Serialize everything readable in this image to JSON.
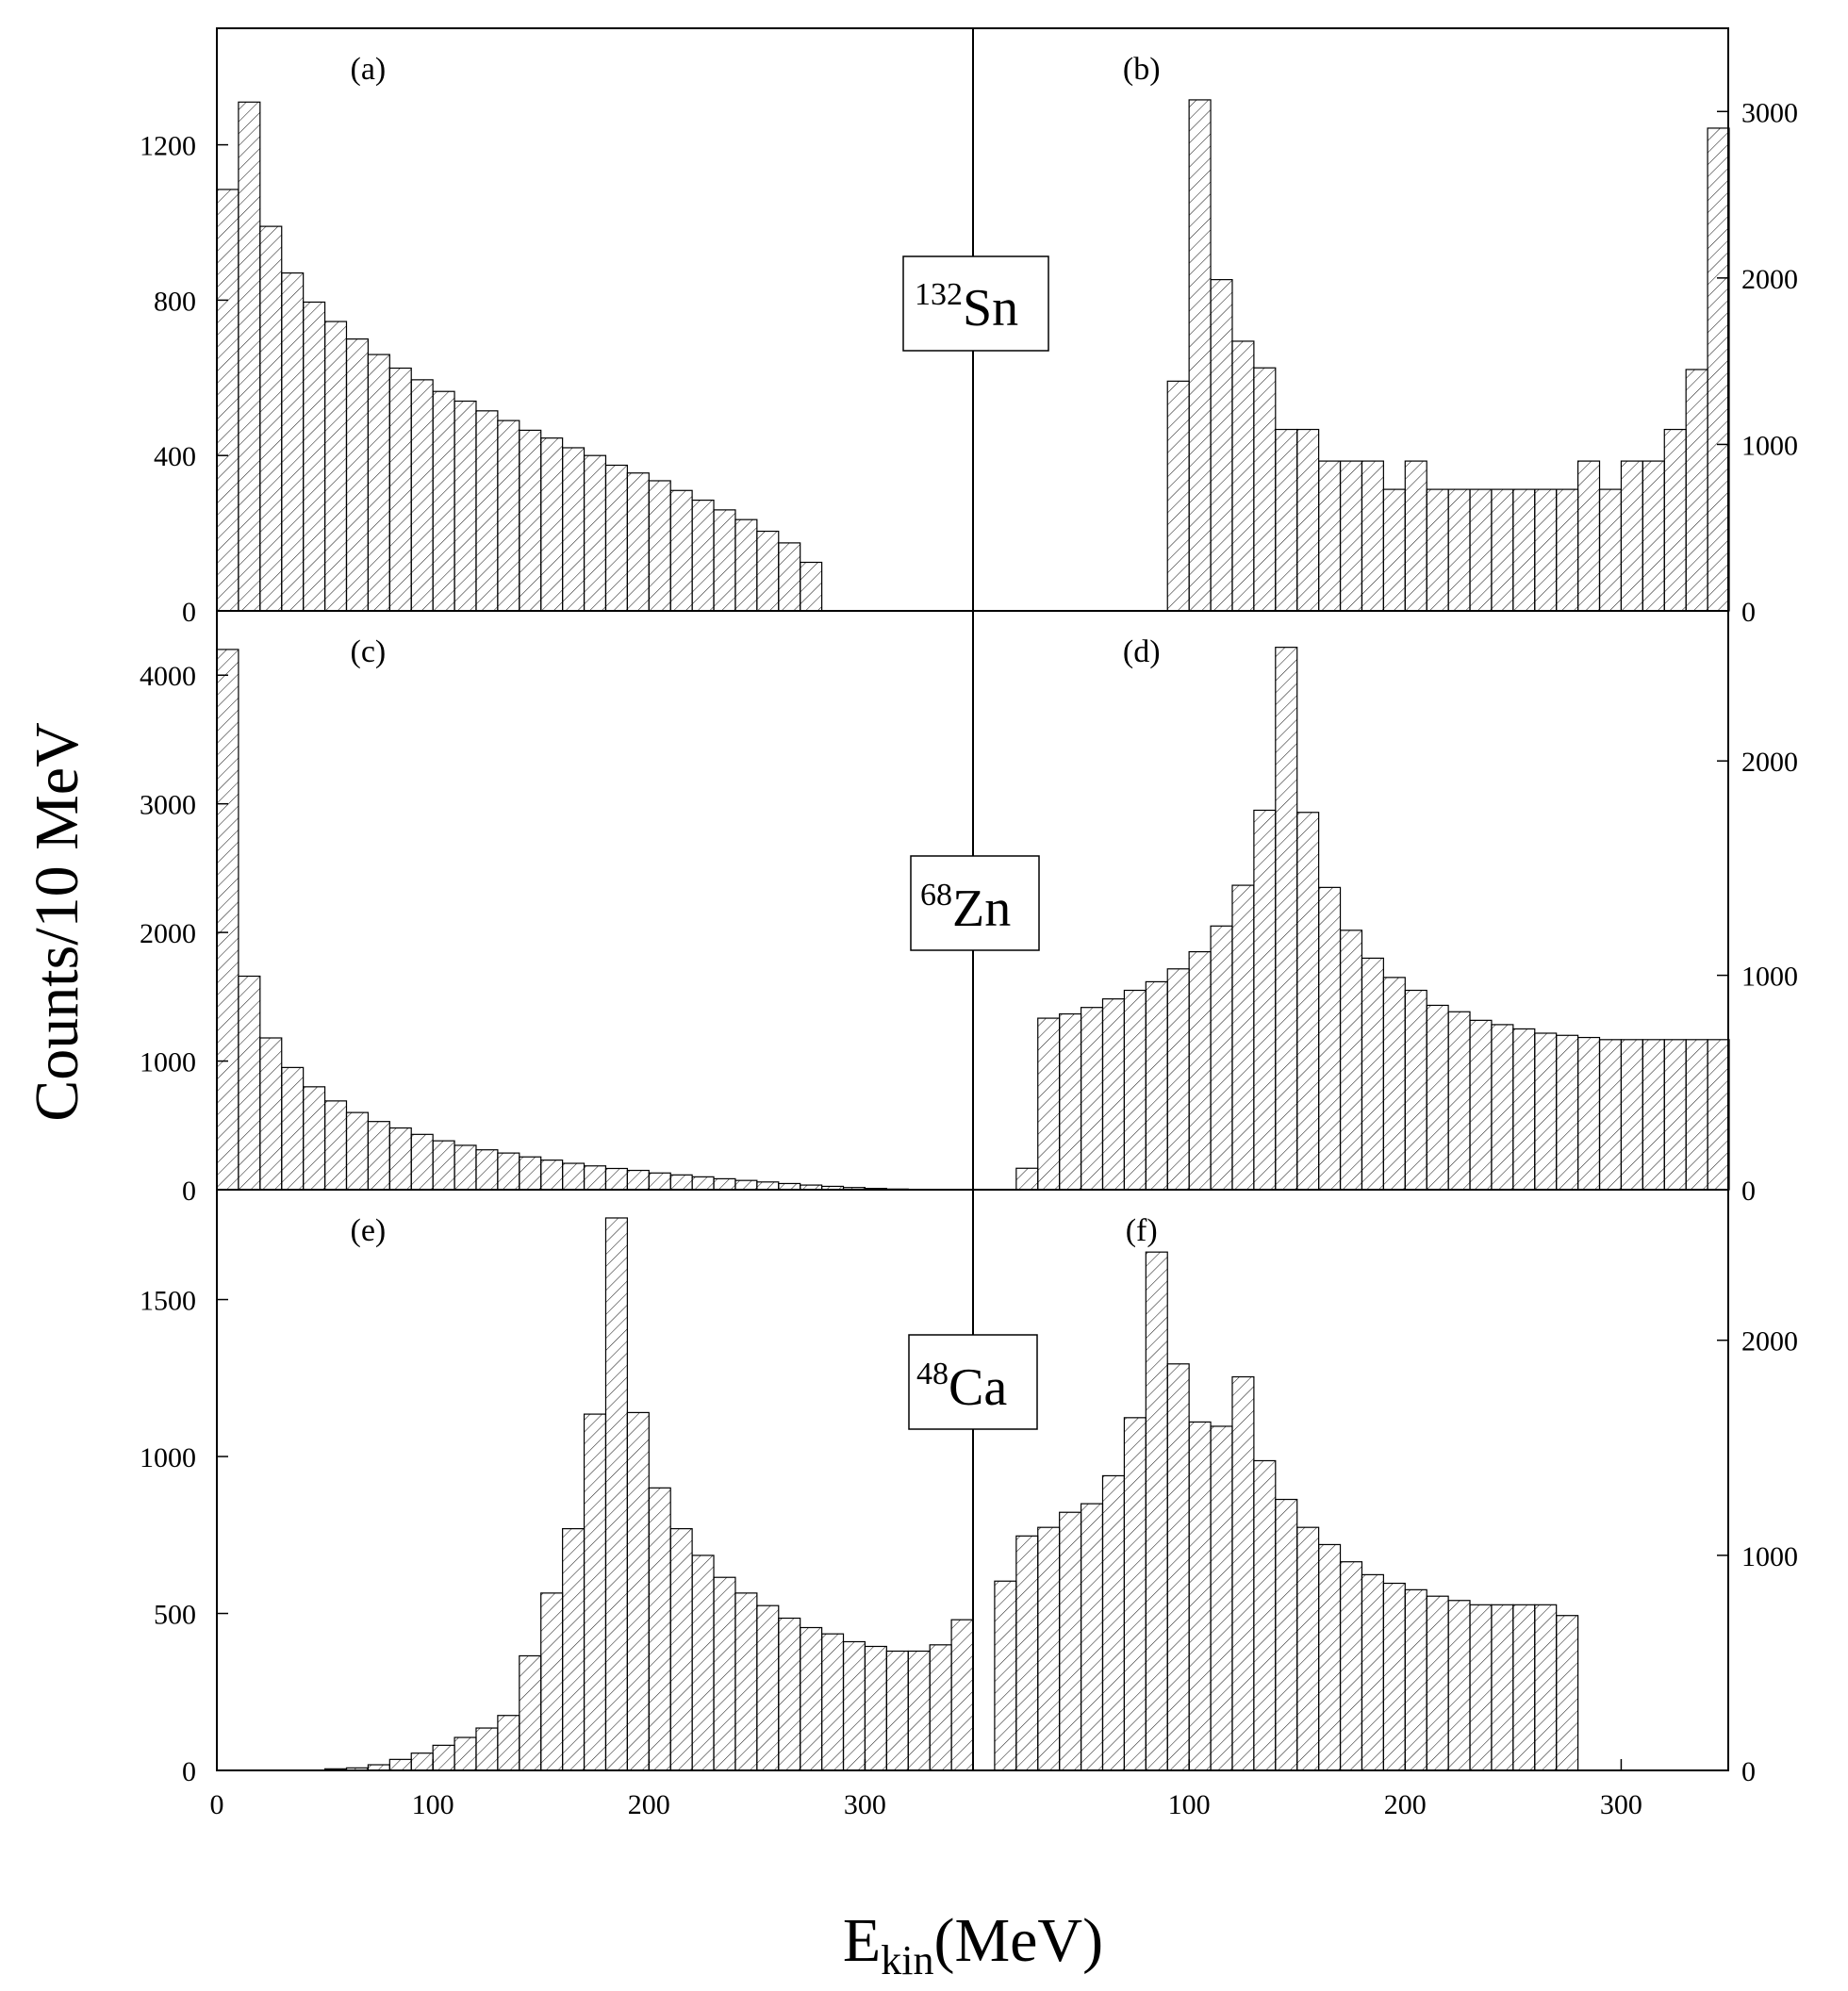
{
  "figure": {
    "ylabel": "Counts/10 MeV",
    "xlabel_main": "E",
    "xlabel_sub": "kin",
    "xlabel_unit": "(MeV)"
  },
  "chart_data": [
    {
      "type": "bar",
      "panel": "(a)",
      "isotope": {
        "mass": "132",
        "symbol": "Sn"
      },
      "bin_width": 10,
      "x_start": 0,
      "xlim": [
        0,
        350
      ],
      "ylim": [
        0,
        1500
      ],
      "yticks": [
        0,
        400,
        800,
        1200
      ],
      "xticks": [
        0,
        100,
        200,
        300
      ],
      "values": [
        1085,
        1310,
        990,
        870,
        795,
        745,
        700,
        660,
        625,
        595,
        565,
        540,
        515,
        490,
        465,
        445,
        420,
        400,
        375,
        355,
        335,
        310,
        285,
        260,
        235,
        205,
        175,
        125
      ]
    },
    {
      "type": "bar",
      "panel": "(b)",
      "bin_width": 10,
      "x_start": 90,
      "xlim": [
        0,
        350
      ],
      "ylim": [
        0,
        3500
      ],
      "yticks": [
        0,
        1000,
        2000,
        3000
      ],
      "xticks": [
        100,
        200,
        300
      ],
      "values": [
        1380,
        3070,
        1990,
        1620,
        1460,
        1090,
        1090,
        900,
        900,
        900,
        730,
        900,
        730,
        730,
        730,
        730,
        730,
        730,
        730,
        900,
        730,
        900,
        900,
        1090,
        1450,
        2900
      ]
    },
    {
      "type": "bar",
      "panel": "(c)",
      "isotope": {
        "mass": "68",
        "symbol": "Zn"
      },
      "bin_width": 10,
      "x_start": 0,
      "xlim": [
        0,
        350
      ],
      "ylim": [
        0,
        4500
      ],
      "yticks": [
        0,
        1000,
        2000,
        3000,
        4000
      ],
      "xticks": [
        0,
        100,
        200,
        300
      ],
      "values": [
        4200,
        1660,
        1180,
        950,
        800,
        690,
        600,
        530,
        480,
        430,
        380,
        345,
        310,
        285,
        255,
        230,
        205,
        185,
        165,
        150,
        130,
        115,
        100,
        85,
        72,
        60,
        48,
        36,
        26,
        17,
        10,
        5,
        3
      ]
    },
    {
      "type": "bar",
      "panel": "(d)",
      "bin_width": 10,
      "x_start": 20,
      "xlim": [
        0,
        350
      ],
      "ylim": [
        0,
        2700
      ],
      "yticks": [
        0,
        1000,
        2000
      ],
      "xticks": [
        100,
        200,
        300
      ],
      "values": [
        100,
        800,
        820,
        850,
        890,
        930,
        970,
        1030,
        1110,
        1230,
        1420,
        1770,
        2530,
        1760,
        1410,
        1210,
        1080,
        990,
        930,
        860,
        830,
        790,
        770,
        750,
        730,
        720,
        710,
        700,
        700,
        700,
        700,
        700,
        700
      ]
    },
    {
      "type": "bar",
      "panel": "(e)",
      "isotope": {
        "mass": "48",
        "symbol": "Ca"
      },
      "bin_width": 10,
      "x_start": 50,
      "xlim": [
        0,
        350
      ],
      "ylim": [
        0,
        1850
      ],
      "yticks": [
        0,
        500,
        1000,
        1500
      ],
      "xticks": [
        0,
        100,
        200,
        300
      ],
      "values": [
        5,
        8,
        18,
        35,
        55,
        80,
        105,
        135,
        175,
        365,
        565,
        770,
        1135,
        1760,
        1140,
        900,
        770,
        685,
        615,
        565,
        525,
        485,
        455,
        435,
        410,
        395,
        380,
        380,
        400,
        480
      ]
    },
    {
      "type": "bar",
      "panel": "(f)",
      "bin_width": 10,
      "x_start": 10,
      "xlim": [
        0,
        350
      ],
      "ylim": [
        0,
        2700
      ],
      "yticks": [
        0,
        1000,
        2000
      ],
      "xticks": [
        100,
        200,
        300
      ],
      "values": [
        880,
        1090,
        1130,
        1200,
        1240,
        1370,
        1640,
        2410,
        1890,
        1620,
        1600,
        1830,
        1440,
        1260,
        1130,
        1050,
        970,
        910,
        870,
        840,
        810,
        790,
        770,
        770,
        770,
        770,
        720
      ]
    }
  ]
}
